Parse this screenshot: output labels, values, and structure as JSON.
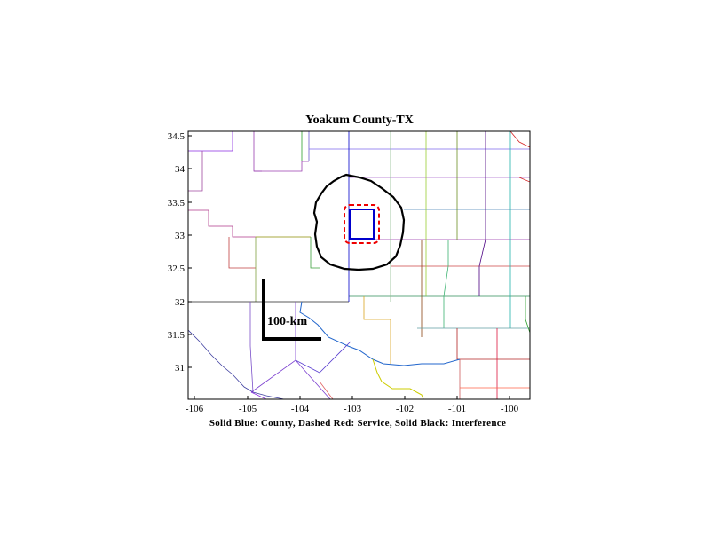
{
  "map": {
    "title": "Yoakum County-TX",
    "caption": "Solid Blue: County, Dashed Red: Service, Solid Black: Interference",
    "scale_label": "100-km",
    "x_ticks": [
      "-106",
      "-105",
      "-104",
      "-103",
      "-102",
      "-101",
      "-100"
    ],
    "y_ticks": [
      "34.5",
      "34",
      "33.5",
      "33",
      "32.5",
      "32",
      "31.5",
      "31"
    ],
    "colors": {
      "county": "#0000cc",
      "service": "#ee0000",
      "interference": "#000000"
    }
  }
}
